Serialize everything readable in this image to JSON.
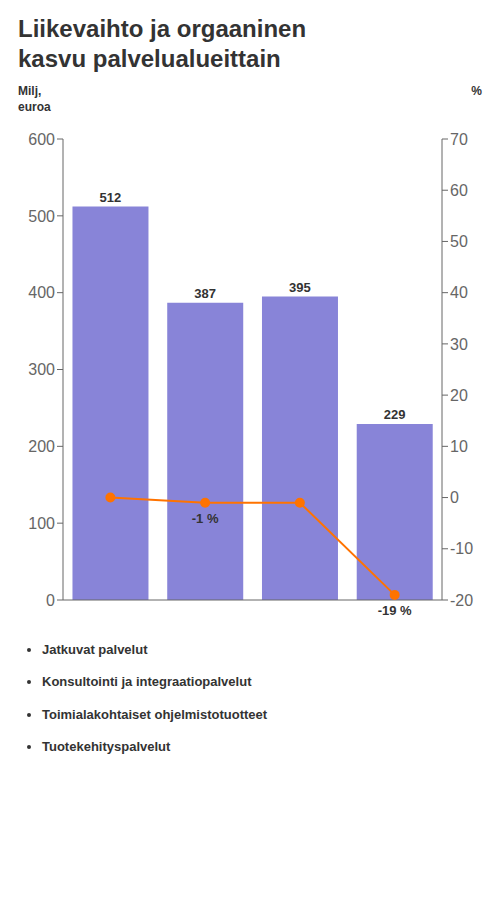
{
  "chart_data": {
    "type": "bar",
    "title": "Liikevaihto ja orgaaninen\nkasvu palvelualueittain",
    "ylabel": "Milj,\neuroa",
    "y2label": "%",
    "categories": [
      "Jatkuvat palvelut",
      "Konsultointi ja integraatiopalvelut",
      "Toimialakohtaiset ohjelmistotuotteet",
      "Tuotekehityspalvelut"
    ],
    "tick_labels": "y",
    "grid": false,
    "ylim": [
      0,
      600
    ],
    "yticks": [
      0,
      100,
      200,
      300,
      400,
      500,
      600
    ],
    "y2lim": [
      -20,
      70
    ],
    "y2ticks": [
      -20,
      -10,
      0,
      10,
      20,
      30,
      40,
      50,
      60,
      70
    ],
    "series": [
      {
        "type": "bar",
        "color": "#8884d8",
        "values": [
          512,
          387,
          395,
          229
        ],
        "data_labels": true
      },
      {
        "type": "line",
        "axis": "y2",
        "color": "#ff7300",
        "marker": "circle",
        "values": [
          0,
          -1,
          -1,
          -19
        ],
        "value_labels": [
          null,
          "-1 %",
          null,
          "-19 %"
        ],
        "data_labels": true
      }
    ]
  }
}
